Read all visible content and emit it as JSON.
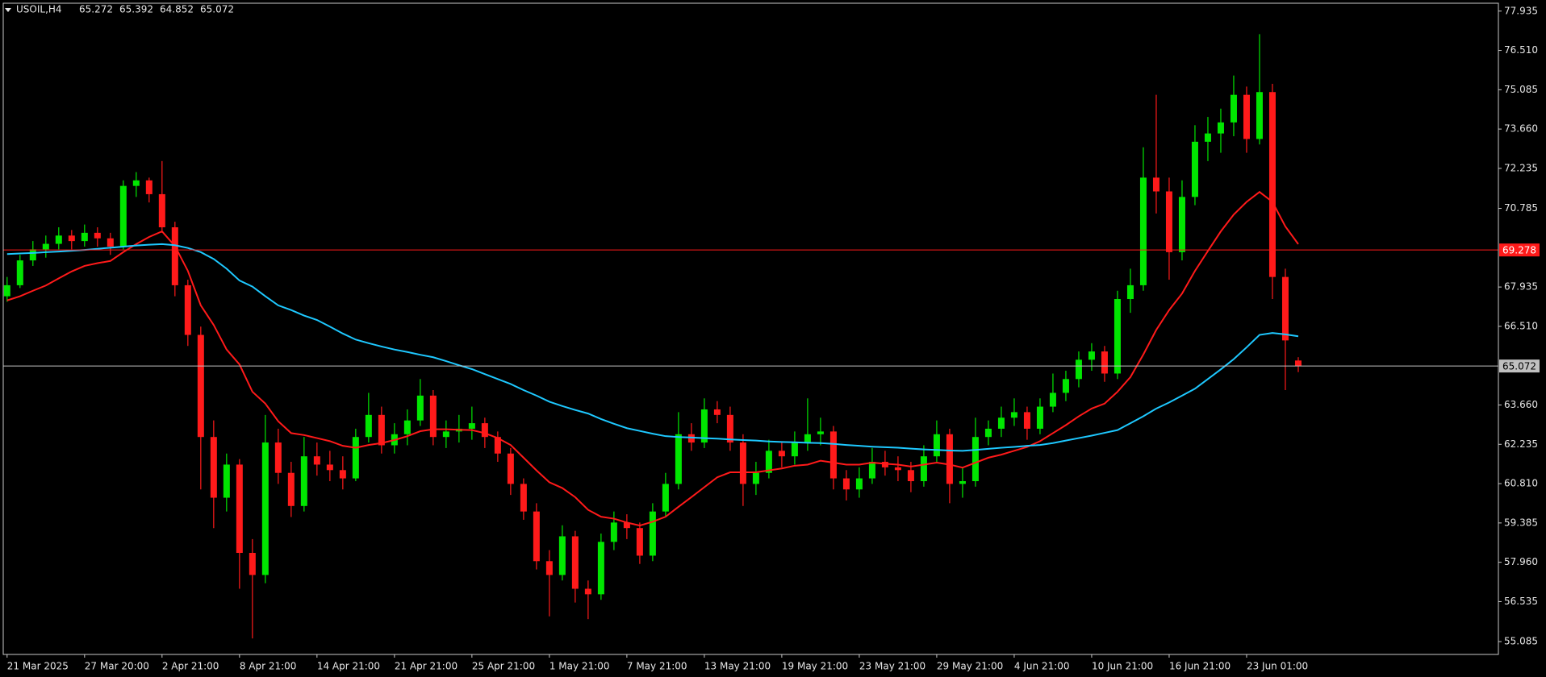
{
  "chart_data": {
    "type": "candlestick",
    "title": "USOIL,H4",
    "quote": [
      65.272,
      65.392,
      64.852,
      65.072
    ],
    "bull_color": "#00e600",
    "bear_color": "#ff1a1a",
    "candles": [
      [
        67.6,
        68.3,
        67.4,
        68.0
      ],
      [
        68.0,
        69.1,
        67.9,
        68.9
      ],
      [
        68.9,
        69.6,
        68.7,
        69.3
      ],
      [
        69.3,
        69.8,
        69.0,
        69.5
      ],
      [
        69.5,
        70.1,
        69.3,
        69.8
      ],
      [
        69.8,
        70.0,
        69.3,
        69.6
      ],
      [
        69.6,
        70.2,
        69.4,
        69.9
      ],
      [
        69.9,
        70.1,
        69.4,
        69.7
      ],
      [
        69.7,
        69.9,
        69.1,
        69.4
      ],
      [
        69.4,
        71.8,
        69.3,
        71.6
      ],
      [
        71.6,
        72.1,
        71.2,
        71.8
      ],
      [
        71.8,
        71.9,
        71.0,
        71.3
      ],
      [
        71.3,
        72.5,
        69.9,
        70.1
      ],
      [
        70.1,
        70.3,
        67.6,
        68.0
      ],
      [
        68.0,
        68.2,
        65.8,
        66.2
      ],
      [
        66.2,
        66.5,
        60.6,
        62.5
      ],
      [
        62.5,
        63.1,
        59.2,
        60.3
      ],
      [
        60.3,
        61.9,
        59.8,
        61.5
      ],
      [
        61.5,
        61.7,
        57.0,
        58.3
      ],
      [
        58.3,
        58.8,
        55.2,
        57.5
      ],
      [
        57.5,
        63.3,
        57.2,
        62.3
      ],
      [
        62.3,
        62.8,
        60.8,
        61.2
      ],
      [
        61.2,
        61.6,
        59.6,
        60.0
      ],
      [
        60.0,
        62.5,
        59.8,
        61.8
      ],
      [
        61.8,
        62.3,
        61.1,
        61.5
      ],
      [
        61.5,
        62.0,
        60.9,
        61.3
      ],
      [
        61.3,
        61.8,
        60.6,
        61.0
      ],
      [
        61.0,
        62.8,
        60.9,
        62.5
      ],
      [
        62.5,
        64.1,
        62.3,
        63.3
      ],
      [
        63.3,
        63.6,
        61.9,
        62.2
      ],
      [
        62.2,
        63.0,
        61.9,
        62.6
      ],
      [
        62.6,
        63.5,
        62.2,
        63.1
      ],
      [
        63.1,
        64.6,
        62.9,
        64.0
      ],
      [
        64.0,
        64.2,
        62.2,
        62.5
      ],
      [
        62.5,
        63.1,
        62.1,
        62.7
      ],
      [
        62.7,
        63.3,
        62.3,
        62.8
      ],
      [
        62.8,
        63.6,
        62.4,
        63.0
      ],
      [
        63.0,
        63.2,
        62.1,
        62.5
      ],
      [
        62.5,
        62.7,
        61.6,
        61.9
      ],
      [
        61.9,
        62.1,
        60.4,
        60.8
      ],
      [
        60.8,
        61.0,
        59.5,
        59.8
      ],
      [
        59.8,
        60.1,
        57.7,
        58.0
      ],
      [
        58.0,
        58.4,
        56.0,
        57.5
      ],
      [
        57.5,
        59.3,
        57.3,
        58.9
      ],
      [
        58.9,
        59.1,
        56.5,
        57.0
      ],
      [
        57.0,
        57.3,
        55.9,
        56.8
      ],
      [
        56.8,
        59.0,
        56.6,
        58.7
      ],
      [
        58.7,
        59.8,
        58.4,
        59.4
      ],
      [
        59.4,
        59.7,
        58.8,
        59.2
      ],
      [
        59.2,
        59.4,
        57.9,
        58.2
      ],
      [
        58.2,
        60.1,
        58.0,
        59.8
      ],
      [
        59.8,
        61.2,
        59.6,
        60.8
      ],
      [
        60.8,
        63.4,
        60.6,
        62.6
      ],
      [
        62.6,
        63.0,
        62.0,
        62.3
      ],
      [
        62.3,
        63.9,
        62.1,
        63.5
      ],
      [
        63.5,
        63.8,
        63.0,
        63.3
      ],
      [
        63.3,
        63.6,
        62.0,
        62.3
      ],
      [
        62.3,
        62.6,
        60.0,
        60.8
      ],
      [
        60.8,
        61.6,
        60.4,
        61.2
      ],
      [
        61.2,
        62.4,
        61.0,
        62.0
      ],
      [
        62.0,
        62.3,
        61.4,
        61.8
      ],
      [
        61.8,
        62.7,
        61.5,
        62.3
      ],
      [
        62.3,
        63.9,
        62.0,
        62.6
      ],
      [
        62.6,
        63.2,
        62.2,
        62.7
      ],
      [
        62.7,
        62.9,
        60.6,
        61.0
      ],
      [
        61.0,
        61.3,
        60.2,
        60.6
      ],
      [
        60.6,
        61.4,
        60.3,
        61.0
      ],
      [
        61.0,
        62.1,
        60.8,
        61.6
      ],
      [
        61.6,
        62.0,
        61.1,
        61.4
      ],
      [
        61.4,
        61.8,
        60.9,
        61.3
      ],
      [
        61.3,
        61.6,
        60.5,
        60.9
      ],
      [
        60.9,
        62.2,
        60.7,
        61.8
      ],
      [
        61.8,
        63.1,
        61.6,
        62.6
      ],
      [
        62.6,
        62.8,
        60.1,
        60.8
      ],
      [
        60.8,
        61.4,
        60.3,
        60.9
      ],
      [
        60.9,
        63.2,
        60.7,
        62.5
      ],
      [
        62.5,
        63.1,
        62.2,
        62.8
      ],
      [
        62.8,
        63.6,
        62.5,
        63.2
      ],
      [
        63.2,
        63.9,
        62.9,
        63.4
      ],
      [
        63.4,
        63.6,
        62.4,
        62.8
      ],
      [
        62.8,
        63.9,
        62.6,
        63.6
      ],
      [
        63.6,
        64.8,
        63.4,
        64.1
      ],
      [
        64.1,
        64.9,
        63.8,
        64.6
      ],
      [
        64.6,
        65.6,
        64.3,
        65.3
      ],
      [
        65.3,
        65.9,
        64.9,
        65.6
      ],
      [
        65.6,
        65.8,
        64.5,
        64.8
      ],
      [
        64.8,
        67.8,
        64.6,
        67.5
      ],
      [
        67.5,
        68.6,
        67.0,
        68.0
      ],
      [
        68.0,
        73.0,
        67.8,
        71.9
      ],
      [
        71.9,
        74.9,
        70.6,
        71.4
      ],
      [
        71.4,
        71.9,
        68.2,
        69.2
      ],
      [
        69.2,
        71.8,
        68.9,
        71.2
      ],
      [
        71.2,
        73.8,
        70.9,
        73.2
      ],
      [
        73.2,
        74.1,
        72.5,
        73.5
      ],
      [
        73.5,
        74.4,
        72.8,
        73.9
      ],
      [
        73.9,
        75.6,
        73.4,
        74.9
      ],
      [
        74.9,
        75.2,
        72.8,
        73.3
      ],
      [
        73.3,
        77.1,
        73.1,
        75.0
      ],
      [
        75.0,
        75.3,
        67.5,
        68.3
      ],
      [
        68.3,
        68.6,
        64.2,
        66.0
      ],
      [
        65.272,
        65.392,
        64.852,
        65.072
      ]
    ],
    "series": [
      {
        "color": "#ff1a1a",
        "values": [
          67.45,
          67.6,
          67.8,
          67.99,
          68.25,
          68.5,
          68.7,
          68.8,
          68.88,
          69.2,
          69.49,
          69.75,
          69.95,
          69.42,
          68.52,
          67.27,
          66.56,
          65.67,
          65.13,
          64.14,
          63.71,
          63.07,
          62.64,
          62.57,
          62.46,
          62.35,
          62.18,
          62.11,
          62.21,
          62.28,
          62.39,
          62.53,
          62.71,
          62.78,
          62.78,
          62.76,
          62.75,
          62.64,
          62.46,
          62.21,
          61.75,
          61.29,
          60.86,
          60.65,
          60.32,
          59.86,
          59.61,
          59.54,
          59.4,
          59.29,
          59.43,
          59.61,
          59.97,
          60.32,
          60.68,
          61.04,
          61.22,
          61.22,
          61.22,
          61.29,
          61.36,
          61.46,
          61.5,
          61.64,
          61.57,
          61.5,
          61.5,
          61.57,
          61.53,
          61.5,
          61.43,
          61.5,
          61.57,
          61.5,
          61.39,
          61.57,
          61.75,
          61.86,
          62.0,
          62.14,
          62.35,
          62.64,
          62.93,
          63.25,
          63.53,
          63.71,
          64.14,
          64.67,
          65.49,
          66.38,
          67.1,
          67.7,
          68.52,
          69.24,
          69.95,
          70.56,
          71.02,
          71.38,
          71.02,
          70.13,
          69.49
        ]
      },
      {
        "color": "#1ec8ff",
        "values": [
          69.13,
          69.15,
          69.17,
          69.2,
          69.22,
          69.25,
          69.28,
          69.32,
          69.36,
          69.4,
          69.44,
          69.47,
          69.49,
          69.45,
          69.35,
          69.2,
          68.95,
          68.6,
          68.17,
          67.95,
          67.6,
          67.27,
          67.1,
          66.9,
          66.74,
          66.5,
          66.25,
          66.03,
          65.9,
          65.78,
          65.67,
          65.58,
          65.48,
          65.39,
          65.25,
          65.1,
          64.96,
          64.78,
          64.6,
          64.42,
          64.2,
          64.0,
          63.78,
          63.62,
          63.48,
          63.35,
          63.15,
          62.98,
          62.82,
          62.72,
          62.62,
          62.53,
          62.5,
          62.48,
          62.46,
          62.44,
          62.41,
          62.39,
          62.37,
          62.34,
          62.32,
          62.31,
          62.29,
          62.28,
          62.25,
          62.21,
          62.18,
          62.15,
          62.13,
          62.11,
          62.08,
          62.05,
          62.03,
          62.01,
          62.0,
          62.03,
          62.07,
          62.11,
          62.14,
          62.18,
          62.21,
          62.28,
          62.37,
          62.46,
          62.55,
          62.65,
          62.75,
          63.0,
          63.25,
          63.53,
          63.75,
          64.0,
          64.25,
          64.6,
          64.95,
          65.32,
          65.75,
          66.2,
          66.27,
          66.22,
          66.15
        ]
      }
    ],
    "hlines": [
      {
        "value": 69.278,
        "color": "#ff1a1a",
        "text_color": "#ffffff"
      },
      {
        "value": 65.072,
        "color": "#c0c0c0",
        "text_color": "#000000"
      }
    ],
    "xlim": [
      -0.3,
      115.5
    ],
    "xticks": [
      {
        "value": 0,
        "label": "21 Mar 2025"
      },
      {
        "value": 6,
        "label": "27 Mar 20:00"
      },
      {
        "value": 12,
        "label": "2 Apr 21:00"
      },
      {
        "value": 18,
        "label": "8 Apr 21:00"
      },
      {
        "value": 24,
        "label": "14 Apr 21:00"
      },
      {
        "value": 30,
        "label": "21 Apr 21:00"
      },
      {
        "value": 36,
        "label": "25 Apr 21:00"
      },
      {
        "value": 42,
        "label": "1 May 21:00"
      },
      {
        "value": 48,
        "label": "7 May 21:00"
      },
      {
        "value": 54,
        "label": "13 May 21:00"
      },
      {
        "value": 60,
        "label": "19 May 21:00"
      },
      {
        "value": 66,
        "label": "23 May 21:00"
      },
      {
        "value": 72,
        "label": "29 May 21:00"
      },
      {
        "value": 78,
        "label": "4 Jun 21:00"
      },
      {
        "value": 84,
        "label": "10 Jun 21:00"
      },
      {
        "value": 90,
        "label": "16 Jun 21:00"
      },
      {
        "value": 96,
        "label": "23 Jun 01:00"
      }
    ],
    "ylim": [
      54.62,
      78.22
    ],
    "yticks": [
      77.935,
      {
        "value": 76.51,
        "label": "76.510"
      },
      75.085,
      {
        "value": 73.66,
        "label": "73.660"
      },
      72.235,
      70.785,
      67.935,
      {
        "value": 66.51,
        "label": "66.510"
      },
      {
        "value": 63.66,
        "label": "63.660"
      },
      62.235,
      {
        "value": 60.81,
        "label": "60.810"
      },
      59.385,
      {
        "value": 57.96,
        "label": "57.960"
      },
      56.535,
      55.085
    ],
    "grid": false
  }
}
